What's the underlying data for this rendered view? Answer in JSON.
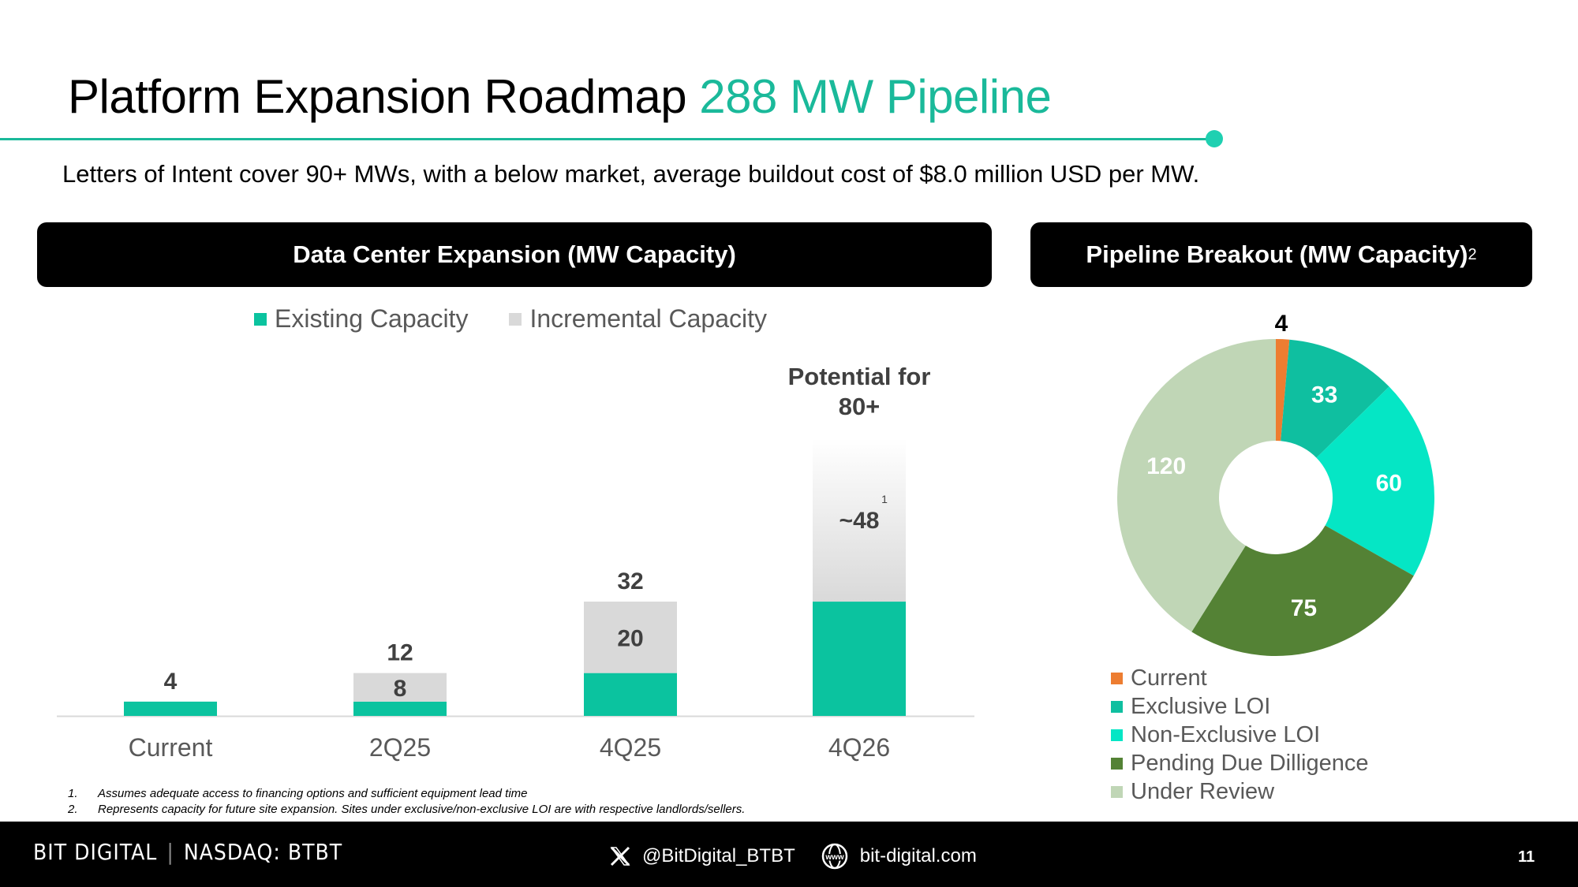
{
  "header": {
    "title": "Platform Expansion Roadmap",
    "title_accent": "288 MW Pipeline",
    "subtitle": "Letters of Intent cover 90+ MWs, with a below market, average buildout cost of $8.0 million USD per MW."
  },
  "colors": {
    "accent": "#1ab99a",
    "existing": "#0bc39f",
    "incremental": "#d9d9d9",
    "text_dark": "#404040",
    "footer_bg": "#000000"
  },
  "left_panel": {
    "header": "Data Center Expansion (MW Capacity)",
    "potential_label_line1": "Potential for",
    "potential_label_line2": "80+",
    "incremental_footnote_marker": "1"
  },
  "right_panel": {
    "header": "Pipeline Breakout (MW Capacity)",
    "header_footnote": "2"
  },
  "chart_data": [
    {
      "type": "bar",
      "stacked": true,
      "title": "Data Center Expansion (MW Capacity)",
      "categories": [
        "Current",
        "2Q25",
        "4Q25",
        "4Q26"
      ],
      "series": [
        {
          "name": "Existing Capacity",
          "color": "#0bc39f",
          "values": [
            4,
            4,
            12,
            32
          ]
        },
        {
          "name": "Incremental Capacity",
          "color": "#d9d9d9",
          "values": [
            0,
            8,
            20,
            48
          ]
        }
      ],
      "total_labels": [
        "4",
        "12",
        "32",
        ""
      ],
      "incremental_labels": [
        "",
        "8",
        "20",
        "~48"
      ],
      "ylim": [
        0,
        80
      ],
      "legend": "top-center",
      "grid": false
    },
    {
      "type": "pie",
      "donut": true,
      "title": "Pipeline Breakout (MW Capacity)",
      "labels": [
        "Current",
        "Exclusive LOI",
        "Non-Exclusive LOI",
        "Pending Due Dilligence",
        "Under Review"
      ],
      "values": [
        4,
        33,
        60,
        75,
        120
      ],
      "colors": [
        "#ed7d31",
        "#0fbfa0",
        "#05e6c5",
        "#548235",
        "#c0d6b6"
      ],
      "legend": "bottom"
    }
  ],
  "footnotes": [
    {
      "num": "1.",
      "text": "Assumes adequate access to financing options and sufficient equipment lead time"
    },
    {
      "num": "2.",
      "text": "Represents capacity for future site expansion. Sites under exclusive/non-exclusive LOI are with respective landlords/sellers."
    }
  ],
  "footer": {
    "brand": "BIT DIGITAL",
    "separator": "|",
    "ticker": "NASDAQ: BTBT",
    "social_handle": "@BitDigital_BTBT",
    "website": "bit-digital.com",
    "page_number": "11"
  }
}
